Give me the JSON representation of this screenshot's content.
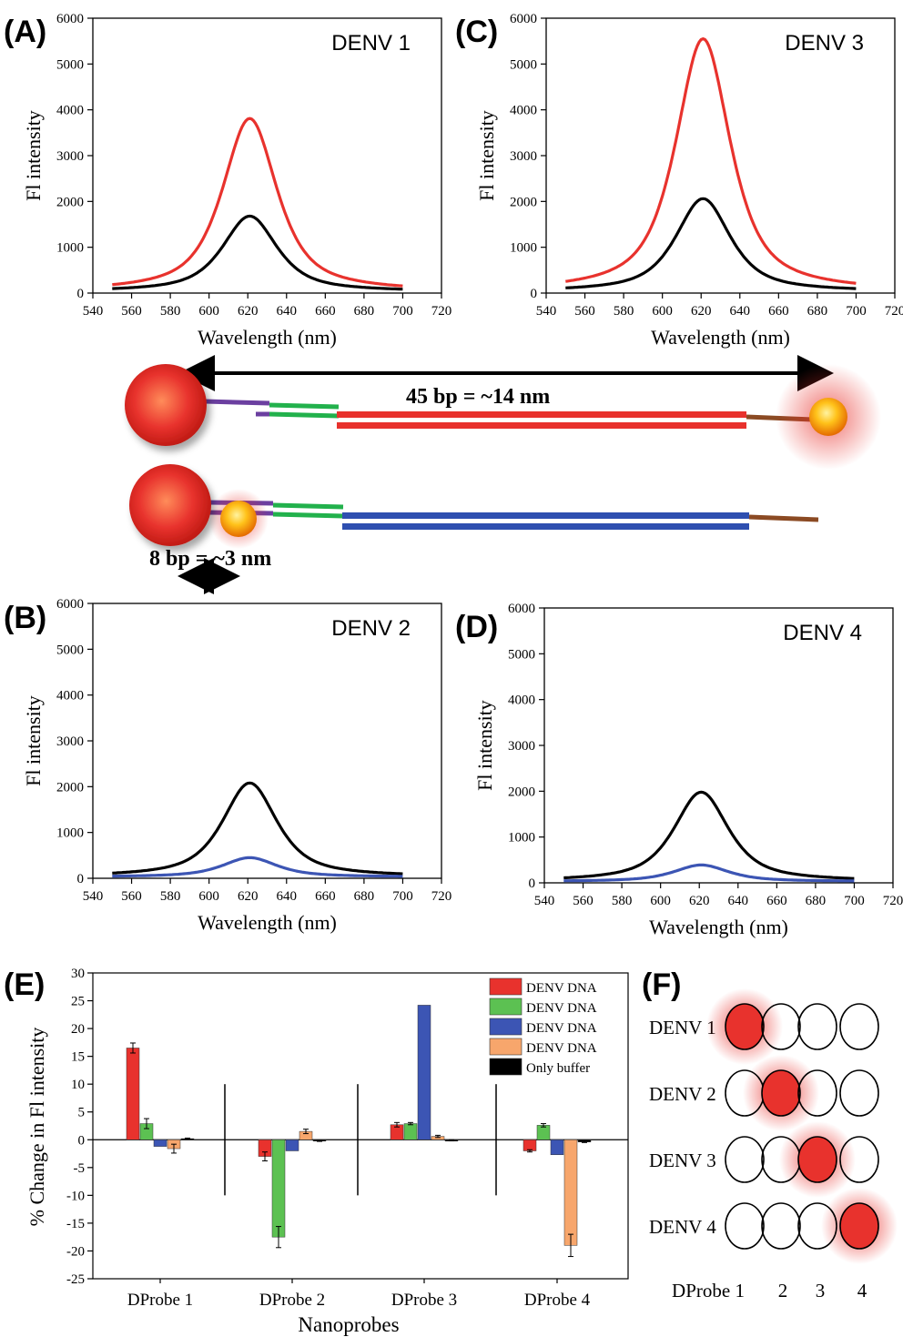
{
  "colors": {
    "red": "#e8322d",
    "black": "#000000",
    "blue": "#3c55b4",
    "green": "#5cc152",
    "orange": "#f7a66c",
    "purple": "#6b3fa0",
    "brown": "#8b4a23",
    "dna_green": "#22b14c",
    "dna_red": "#e8322d",
    "dna_blue": "#2e4fb0"
  },
  "spectra_common": {
    "xlabel": "Wavelength (nm)",
    "ylabel": "Fl intensity",
    "xticks": [
      "540",
      "560",
      "580",
      "600",
      "620",
      "640",
      "660",
      "680",
      "700",
      "720"
    ],
    "yticks": [
      "0",
      "1000",
      "2000",
      "3000",
      "4000",
      "5000",
      "6000"
    ],
    "xlim": [
      540,
      720
    ],
    "ylim": [
      0,
      6000
    ]
  },
  "panels": [
    {
      "label": "(A)",
      "title": "DENV 1"
    },
    {
      "label": "(C)",
      "title": "DENV 3"
    },
    {
      "label": "(B)",
      "title": "DENV 2"
    },
    {
      "label": "(D)",
      "title": "DENV 4"
    }
  ],
  "schematic": {
    "long_label": "45 bp = ~14 nm",
    "short_label": "8 bp = ~3 nm"
  },
  "panel_e": {
    "label": "(E)",
    "ylabel": "% Change in Fl intensity",
    "xlabel": "Nanoprobes",
    "yticks": [
      "30",
      "25",
      "20",
      "15",
      "10",
      "5",
      "0",
      "-5",
      "-10",
      "-15",
      "-20",
      "-25"
    ],
    "categories": [
      "DProbe 1",
      "DProbe 2",
      "DProbe 3",
      "DProbe 4"
    ],
    "legend": [
      "DENV DNA",
      "DENV DNA",
      "DENV DNA",
      "DENV DNA",
      "Only buffer"
    ]
  },
  "panel_f": {
    "label": "(F)",
    "rows": [
      "DENV 1",
      "DENV 2",
      "DENV 3",
      "DENV 4"
    ],
    "col_labels": [
      "DProbe 1",
      "2",
      "3",
      "4"
    ]
  },
  "chart_data": [
    {
      "type": "line",
      "title": "DENV 1",
      "xlabel": "Wavelength (nm)",
      "ylabel": "Fl intensity",
      "xlim": [
        540,
        720
      ],
      "ylim": [
        0,
        6000
      ],
      "series": [
        {
          "color": "#e8322d",
          "peak_x": 621,
          "peak_y": 3780,
          "x_range": [
            550,
            700
          ]
        },
        {
          "color": "#000000",
          "peak_x": 621,
          "peak_y": 1650,
          "x_range": [
            550,
            700
          ]
        }
      ]
    },
    {
      "type": "line",
      "title": "DENV 3",
      "xlabel": "Wavelength (nm)",
      "ylabel": "Fl intensity",
      "xlim": [
        540,
        720
      ],
      "ylim": [
        0,
        6000
      ],
      "series": [
        {
          "color": "#e8322d",
          "peak_x": 621,
          "peak_y": 5520,
          "x_range": [
            550,
            700
          ]
        },
        {
          "color": "#000000",
          "peak_x": 621,
          "peak_y": 2030,
          "x_range": [
            550,
            700
          ]
        }
      ]
    },
    {
      "type": "line",
      "title": "DENV 2",
      "xlabel": "Wavelength (nm)",
      "ylabel": "Fl intensity",
      "xlim": [
        540,
        720
      ],
      "ylim": [
        0,
        6000
      ],
      "series": [
        {
          "color": "#000000",
          "peak_x": 621,
          "peak_y": 2050,
          "x_range": [
            550,
            700
          ]
        },
        {
          "color": "#3c55b4",
          "peak_x": 621,
          "peak_y": 420,
          "x_range": [
            550,
            700
          ]
        }
      ]
    },
    {
      "type": "line",
      "title": "DENV 4",
      "xlabel": "Wavelength (nm)",
      "ylabel": "Fl intensity",
      "xlim": [
        540,
        720
      ],
      "ylim": [
        0,
        6000
      ],
      "series": [
        {
          "color": "#000000",
          "peak_x": 621,
          "peak_y": 1950,
          "x_range": [
            550,
            700
          ]
        },
        {
          "color": "#3c55b4",
          "peak_x": 621,
          "peak_y": 360,
          "x_range": [
            550,
            700
          ]
        }
      ]
    },
    {
      "type": "bar",
      "xlabel": "Nanoprobes",
      "ylabel": "% Change in Fl intensity",
      "ylim": [
        -25,
        30
      ],
      "categories": [
        "DProbe 1",
        "DProbe 2",
        "DProbe 3",
        "DProbe 4"
      ],
      "series": [
        {
          "name": "DENV DNA",
          "color": "#e8322d",
          "values": [
            16.5,
            -3.0,
            2.7,
            -2.0
          ],
          "errors": [
            0.9,
            0.8,
            0.4,
            0.2
          ]
        },
        {
          "name": "DENV DNA",
          "color": "#5cc152",
          "values": [
            2.9,
            -17.5,
            2.9,
            2.6
          ],
          "errors": [
            0.9,
            1.9,
            0.2,
            0.3
          ]
        },
        {
          "name": "DENV DNA",
          "color": "#3c55b4",
          "values": [
            -1.2,
            -2.0,
            24.2,
            -2.7
          ],
          "errors": [
            0,
            0,
            0,
            0
          ]
        },
        {
          "name": "DENV DNA",
          "color": "#f7a66c",
          "values": [
            -1.6,
            1.5,
            0.6,
            -19.0
          ],
          "errors": [
            0.8,
            0.4,
            0.2,
            2.0
          ]
        },
        {
          "name": "Only buffer",
          "color": "#000000",
          "values": [
            0.2,
            -0.2,
            -0.1,
            -0.4
          ],
          "errors": [
            0.1,
            0.1,
            0.1,
            0.1
          ]
        }
      ]
    }
  ]
}
